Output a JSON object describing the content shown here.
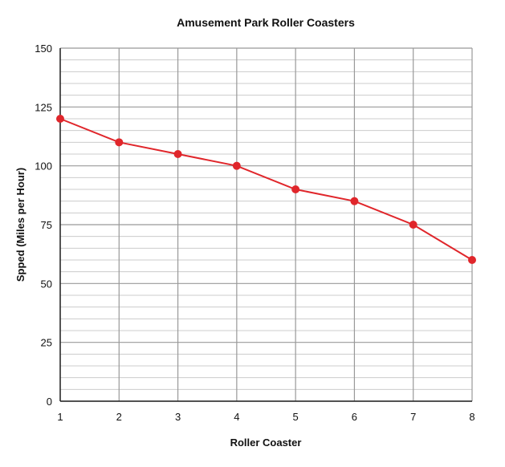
{
  "chart_data": {
    "type": "line",
    "title": "Amusement Park Roller Coasters",
    "xlabel": "Roller Coaster",
    "ylabel": "Spped (Miles per Hour)",
    "x": [
      1,
      2,
      3,
      4,
      5,
      6,
      7,
      8
    ],
    "xlim": [
      1,
      8
    ],
    "ylim": [
      0,
      150
    ],
    "yticks": [
      0,
      25,
      50,
      75,
      100,
      125,
      150
    ],
    "series": [
      {
        "values": [
          120,
          110,
          105,
          100,
          90,
          85,
          75,
          60
        ]
      }
    ],
    "grid": true,
    "colors": {
      "line": "#e0262b",
      "marker": "#e0262b",
      "major_grid": "#999999",
      "minor_grid": "#cccccc",
      "axis": "#222222"
    }
  }
}
